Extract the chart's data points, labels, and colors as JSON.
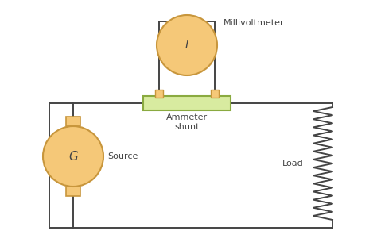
{
  "background_color": "#ffffff",
  "orange_fill": "#F5C878",
  "orange_edge": "#C8963C",
  "green_fill": "#D8EBA0",
  "green_edge": "#8AAA40",
  "line_color": "#444444",
  "text_color": "#444444",
  "millivoltmeter_label": "Millivoltmeter",
  "ammeter_shunt_label": "Ammeter\nshunt",
  "source_label": "Source",
  "load_label": "Load",
  "meter_I_label": "I",
  "meter_G_label": "G",
  "fig_w": 4.74,
  "fig_h": 3.15,
  "dpi": 100
}
